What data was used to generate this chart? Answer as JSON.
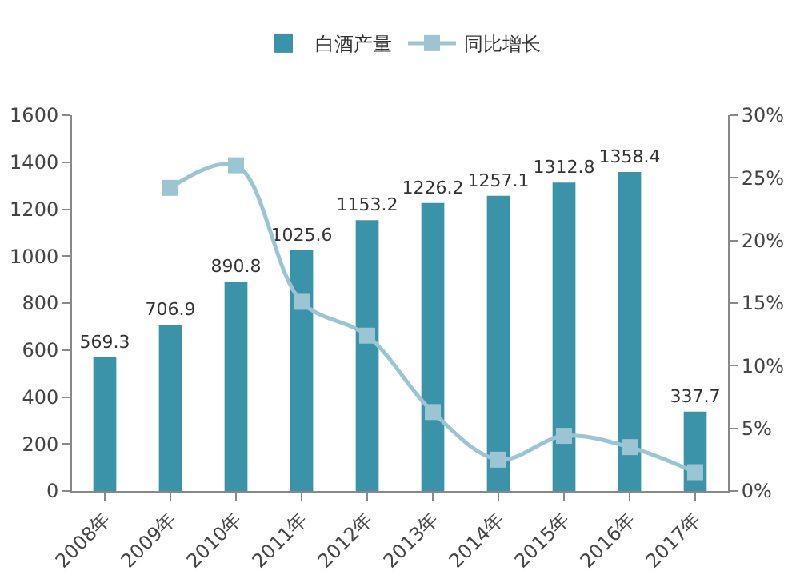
{
  "chart_data": {
    "type": "bar",
    "categories": [
      "2008年",
      "2009年",
      "2010年",
      "2011年",
      "2012年",
      "2013年",
      "2014年",
      "2015年",
      "2016年",
      "2017年"
    ],
    "series": [
      {
        "name": "白酒产量",
        "color": "#3a93a8",
        "values": [
          569.3,
          706.9,
          890.8,
          1025.6,
          1153.2,
          1226.2,
          1257.1,
          1312.8,
          1358.4,
          337.7
        ],
        "data_labels": true
      },
      {
        "name": "同比增长",
        "type": "line",
        "axis": "y2",
        "color": "#9cc5d3",
        "marker": "square",
        "values": [
          null,
          24.2,
          26.0,
          15.1,
          12.4,
          6.3,
          2.5,
          4.4,
          3.5,
          1.5
        ]
      }
    ],
    "ylim": [
      0,
      1600
    ],
    "yticks": [
      0,
      200,
      400,
      600,
      800,
      1000,
      1200,
      1400,
      1600
    ],
    "y2lim": [
      0,
      30
    ],
    "y2ticks": [
      {
        "value": 0,
        "label": "0%"
      },
      {
        "value": 5,
        "label": "5%"
      },
      {
        "value": 10,
        "label": "10%"
      },
      {
        "value": 15,
        "label": "15%"
      },
      {
        "value": 20,
        "label": "20%"
      },
      {
        "value": 25,
        "label": "25%"
      },
      {
        "value": 30,
        "label": "30%"
      }
    ],
    "grid": false,
    "legend": "top"
  }
}
